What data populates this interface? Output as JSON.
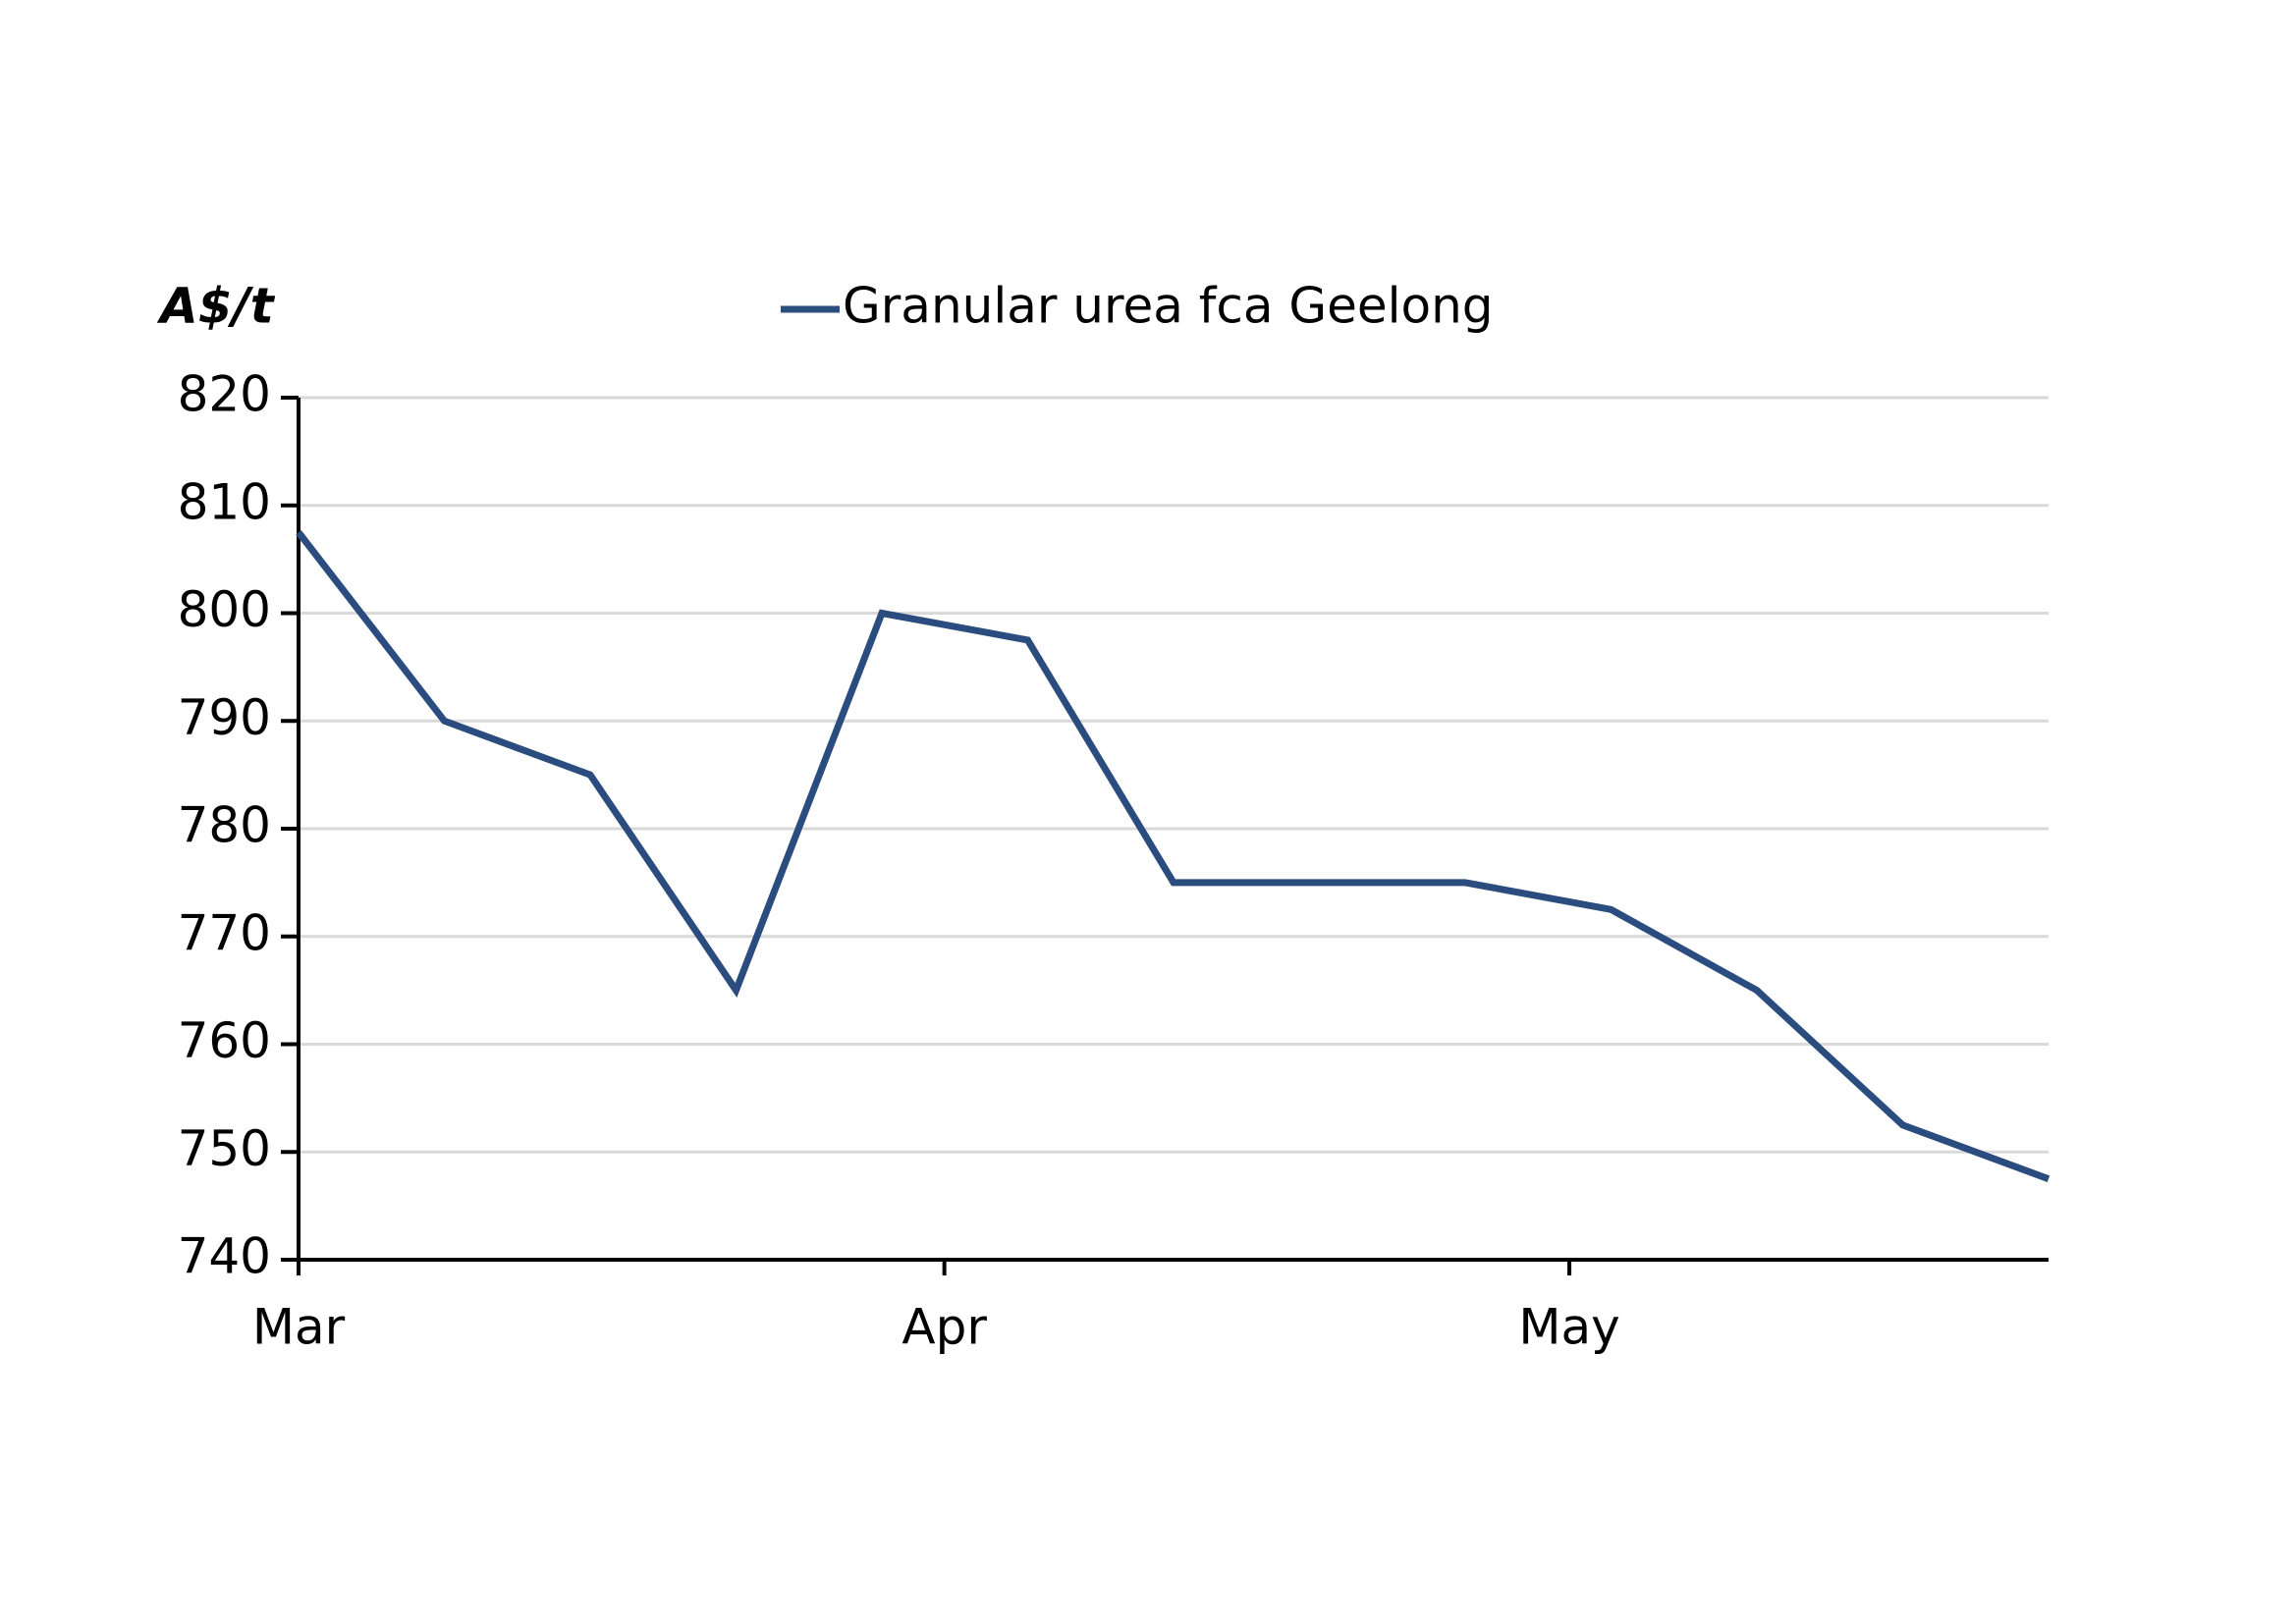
{
  "chart_data": {
    "type": "line",
    "y_label": "A$/t",
    "x": [
      0,
      7,
      14,
      21,
      28,
      35,
      42,
      49,
      56,
      63,
      70,
      77,
      84
    ],
    "xlim": [
      0,
      84
    ],
    "xticks": [
      {
        "value": 0,
        "label": "Mar"
      },
      {
        "value": 31,
        "label": "Apr"
      },
      {
        "value": 61,
        "label": "May"
      }
    ],
    "series": [
      {
        "name": "Granular urea fca Geelong",
        "color": "#2b4c7e",
        "values": [
          807.5,
          790,
          785,
          765,
          800,
          797.5,
          775,
          775,
          775,
          772.5,
          765,
          752.5,
          747.5
        ]
      }
    ],
    "ylim": [
      740,
      820
    ],
    "yticks": [
      740,
      750,
      760,
      770,
      780,
      790,
      800,
      810,
      820
    ],
    "grid": true,
    "legend": "top"
  }
}
